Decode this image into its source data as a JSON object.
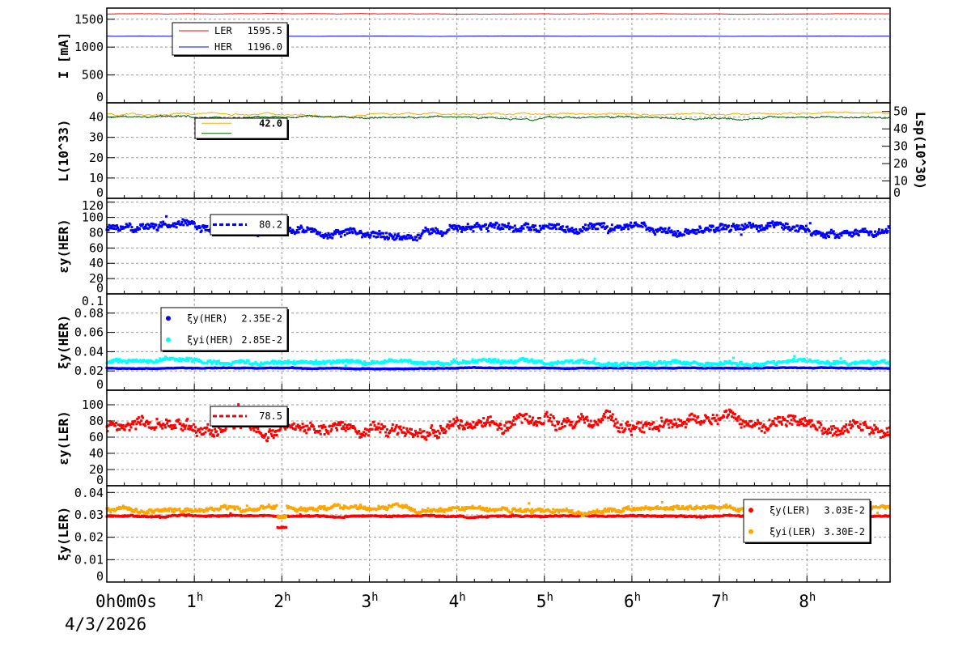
{
  "chart_data": [
    {
      "type": "line",
      "ylabel": "I [mA]",
      "ylim": [
        0,
        1700
      ],
      "yticks": [
        0,
        500,
        1000,
        1500
      ],
      "series": [
        {
          "name": "LER",
          "legend_value": "1595.5",
          "mean": 1595.5,
          "noise": 4,
          "color": "#ff0000",
          "style": "line"
        },
        {
          "name": "HER",
          "legend_value": "1196.0",
          "mean": 1196.0,
          "noise": 2,
          "color": "#0000ff",
          "style": "line"
        }
      ]
    },
    {
      "type": "line",
      "ylabel": "L(10^33)",
      "ylim": [
        0,
        47
      ],
      "yticks": [
        0,
        10,
        20,
        30,
        40
      ],
      "y2label": "Lsp(10^30)",
      "y2lim": [
        0,
        55
      ],
      "y2ticks": [
        0,
        10,
        20,
        30,
        40,
        50
      ],
      "series": [
        {
          "name": "L",
          "legend_value": "42.0",
          "mean": 41.5,
          "noise": 0.8,
          "color": "#ffaa00",
          "style": "line"
        },
        {
          "name": "Lsp",
          "legend_value": "",
          "mean": 40,
          "noise": 0.8,
          "color": "#006600",
          "style": "line"
        }
      ]
    },
    {
      "type": "scatter",
      "ylabel": "εy(HER)",
      "ylim": [
        0,
        125
      ],
      "yticks": [
        0,
        20,
        40,
        60,
        80,
        100,
        120
      ],
      "series": [
        {
          "name": "",
          "legend_value": "80.2",
          "mean": 85,
          "noise": 6,
          "color": "#0000ff",
          "style": "points"
        }
      ]
    },
    {
      "type": "scatter",
      "ylabel": "ξy(HER)",
      "ylim": [
        0,
        0.1
      ],
      "yticks": [
        0,
        0.02,
        0.04,
        0.06,
        0.08,
        0.1
      ],
      "ytick_labels": [
        "0",
        "0.02",
        "0.04",
        "0.06",
        "0.08",
        "0.1"
      ],
      "series": [
        {
          "name": "ξy(HER)",
          "legend_value": "2.35E-2",
          "mean": 0.0228,
          "noise": 0.0004,
          "color": "#0000ff",
          "style": "points"
        },
        {
          "name": "ξyi(HER)",
          "legend_value": "2.85E-2",
          "mean": 0.029,
          "noise": 0.0025,
          "color": "#00ffff",
          "style": "points"
        }
      ]
    },
    {
      "type": "scatter",
      "ylabel": "εy(LER)",
      "ylim": [
        0,
        118
      ],
      "yticks": [
        0,
        20,
        40,
        60,
        80,
        100
      ],
      "series": [
        {
          "name": "",
          "legend_value": "78.5",
          "mean": 76,
          "noise": 9,
          "color": "#ff0000",
          "style": "points"
        }
      ]
    },
    {
      "type": "scatter",
      "ylabel": "ξy(LER)",
      "ylim": [
        0,
        0.043
      ],
      "yticks": [
        0,
        0.01,
        0.02,
        0.03,
        0.04
      ],
      "ytick_labels": [
        "0",
        "0.01",
        "0.02",
        "0.03",
        "0.04"
      ],
      "series": [
        {
          "name": "ξy(LER)",
          "legend_value": "3.03E-2",
          "mean": 0.0295,
          "noise": 0.0004,
          "color": "#ff0000",
          "style": "points"
        },
        {
          "name": "ξyi(LER)",
          "legend_value": "3.30E-2",
          "mean": 0.0325,
          "noise": 0.0012,
          "color": "#ffa500",
          "style": "points"
        }
      ]
    }
  ],
  "xaxis": {
    "xlim_hours": [
      0,
      8.95
    ],
    "ticks": [
      {
        "h": 0,
        "label": "0h0m0s"
      },
      {
        "h": 1,
        "label": "1h"
      },
      {
        "h": 2,
        "label": "2h"
      },
      {
        "h": 3,
        "label": "3h"
      },
      {
        "h": 4,
        "label": "4h"
      },
      {
        "h": 5,
        "label": "5h"
      },
      {
        "h": 6,
        "label": "6h"
      },
      {
        "h": 7,
        "label": "7h"
      },
      {
        "h": 8,
        "label": "8h"
      }
    ],
    "date": "4/3/2026"
  }
}
